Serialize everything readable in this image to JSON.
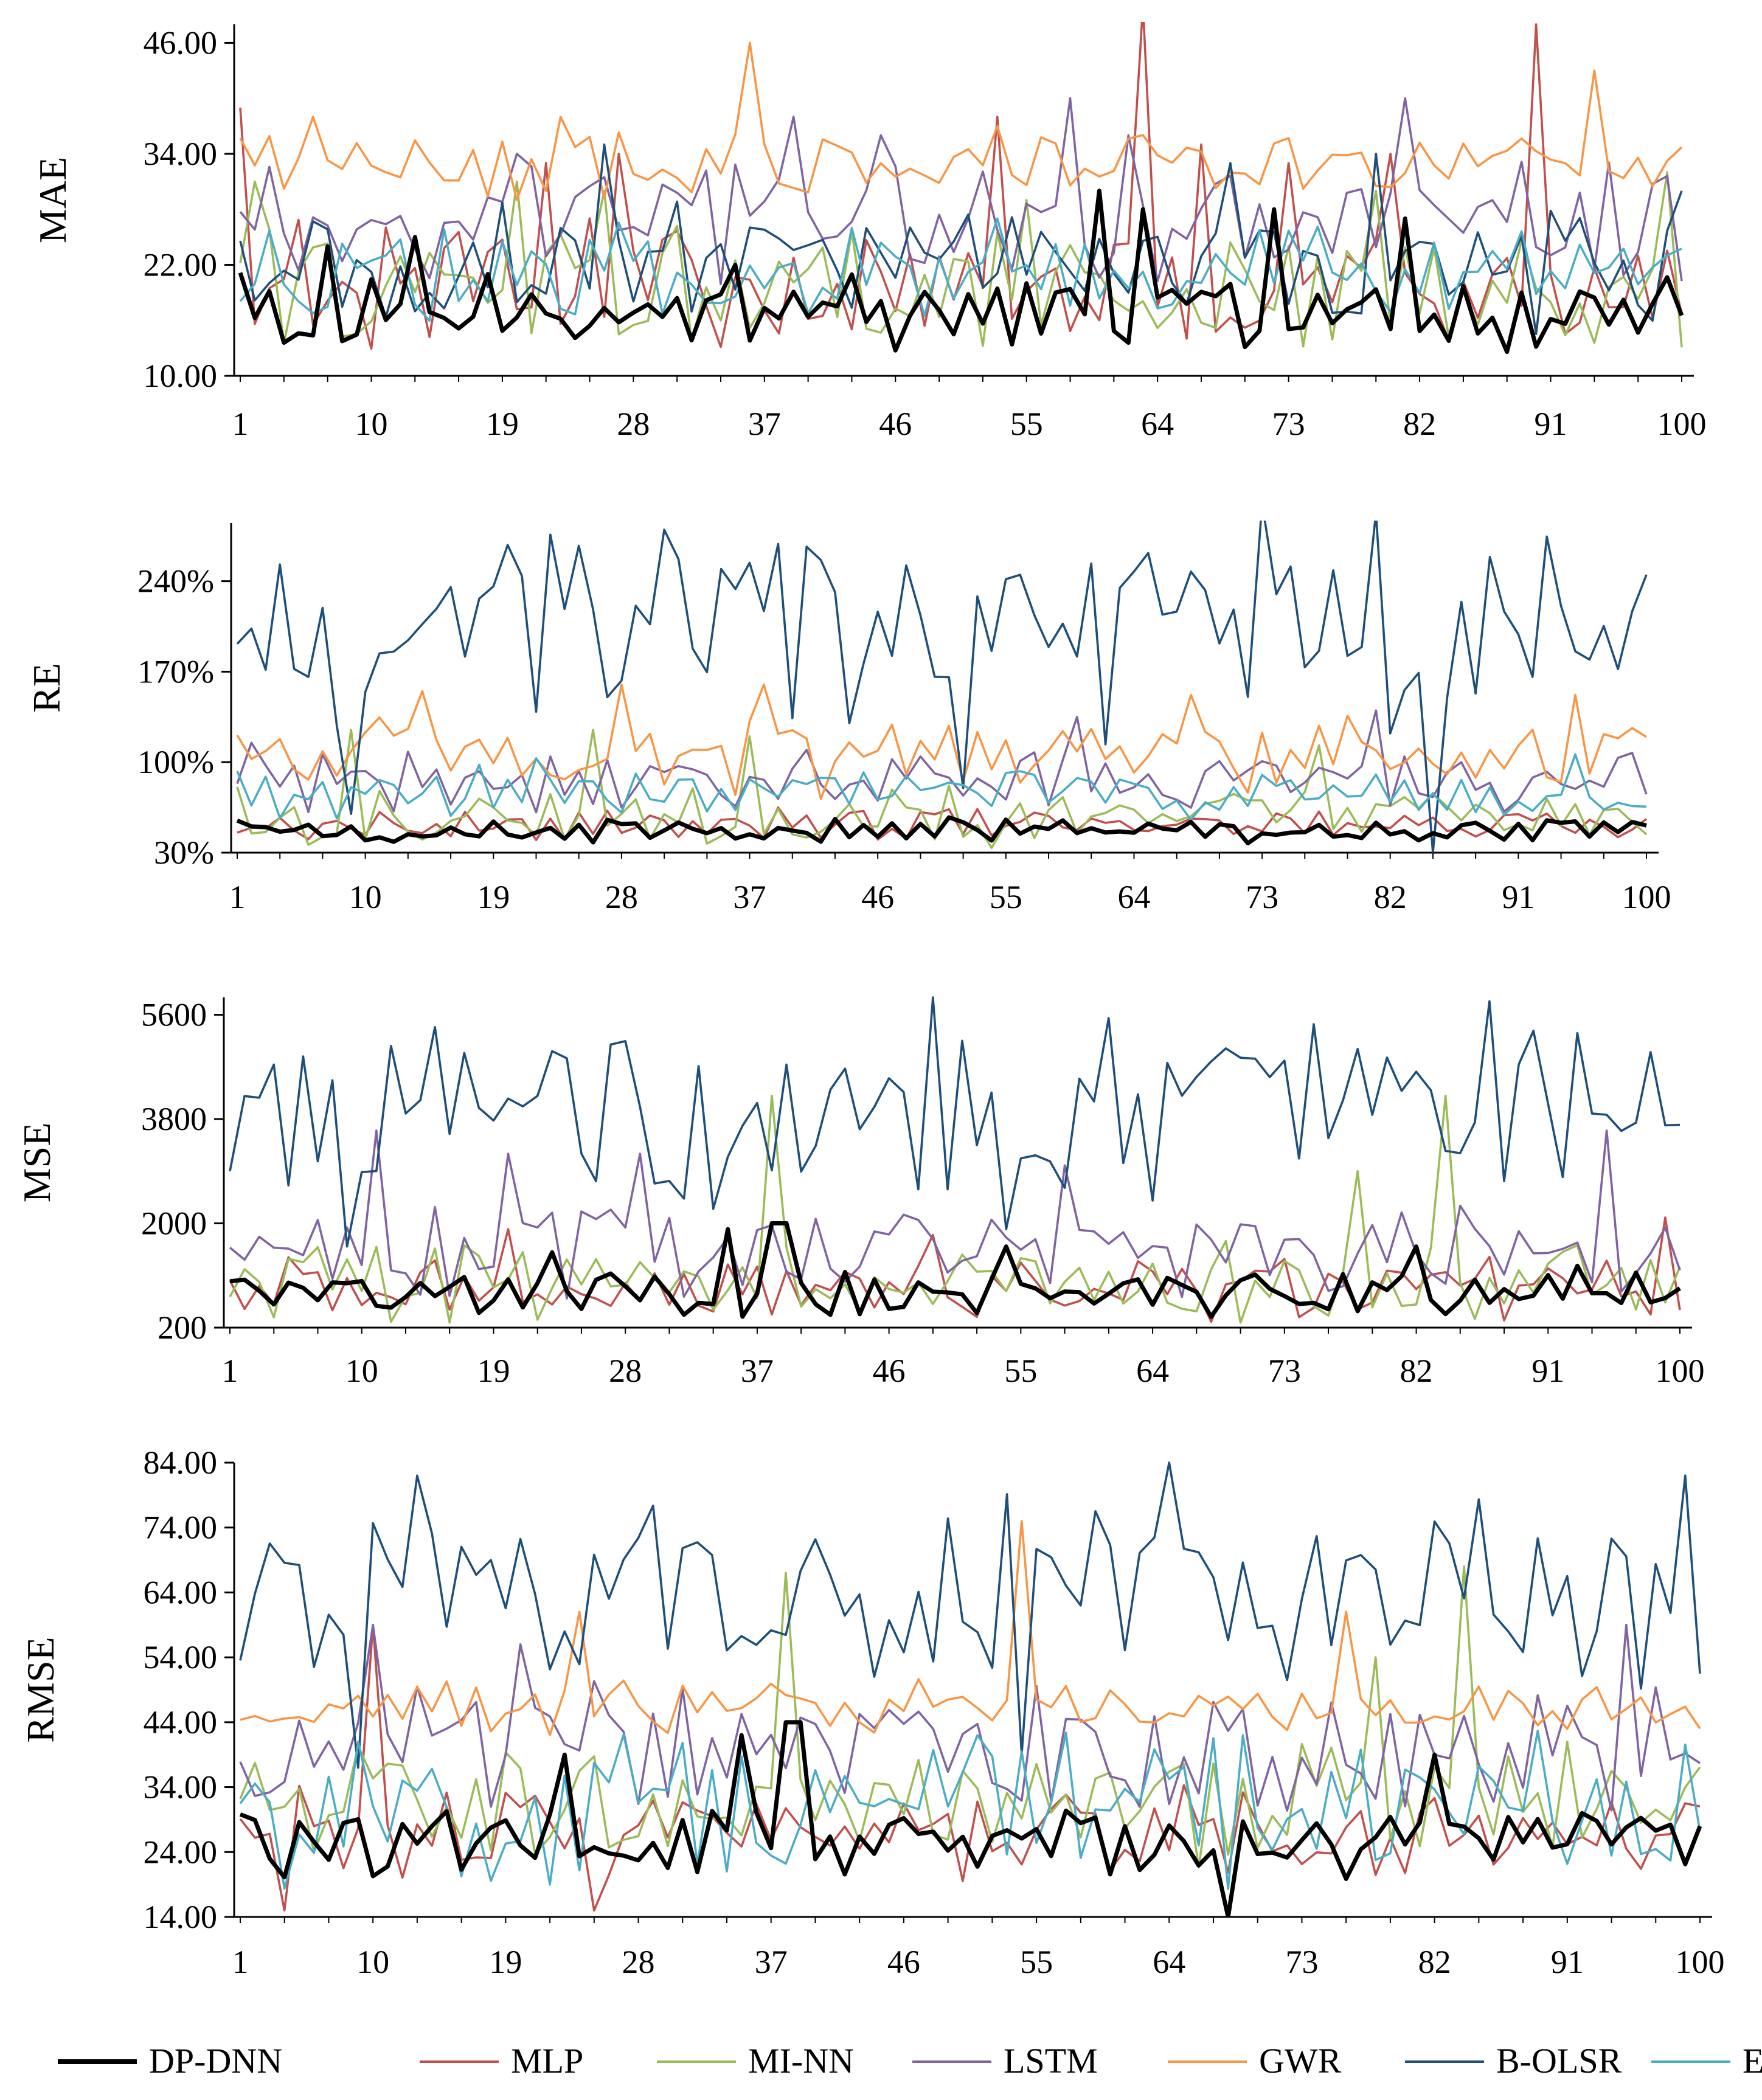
{
  "chart_data": {
    "type": "line",
    "layout": "four stacked line charts sharing one legend at the bottom",
    "series_names": [
      "DP-DNN",
      "MLP",
      "MI-NN",
      "LSTM",
      "GWR",
      "B-OLSR",
      "EN"
    ],
    "series_colors": [
      "#000000",
      "#c0504d",
      "#9bbb59",
      "#8064a2",
      "#f79646",
      "#1f4e79",
      "#4bacc6"
    ],
    "x": {
      "label": "",
      "range": [
        1,
        100
      ],
      "tick_values": [
        1,
        10,
        19,
        28,
        37,
        46,
        55,
        64,
        73,
        82,
        91,
        100
      ],
      "tick_labels": [
        "1",
        "10",
        "19",
        "28",
        "37",
        "46",
        "55",
        "64",
        "73",
        "82",
        "91",
        "100"
      ]
    },
    "legend": {
      "position": "bottom",
      "entries": [
        "DP-DNN",
        "MLP",
        "MI-NN",
        "LSTM",
        "GWR",
        "B-OLSR",
        "EN"
      ]
    },
    "panels": [
      {
        "id": "mae",
        "ylabel": "MAE",
        "ylim": [
          10,
          48
        ],
        "yticks": [
          10,
          22,
          34,
          46
        ],
        "ytick_labels": [
          "10.00",
          "22.00",
          "34.00",
          "46.00"
        ],
        "grid": false,
        "series": [
          {
            "name": "DP-DNN",
            "base": 17,
            "amp": 3.5,
            "seed": 11,
            "spikes": [
              [
                7,
                24
              ],
              [
                13,
                25
              ],
              [
                18,
                21
              ],
              [
                35,
                22
              ],
              [
                60,
                30
              ],
              [
                63,
                28
              ],
              [
                72,
                28
              ],
              [
                81,
                27
              ],
              [
                89,
                19
              ]
            ]
          },
          {
            "name": "MLP",
            "base": 20,
            "amp": 6,
            "seed": 23,
            "spikes": [
              [
                1,
                39
              ],
              [
                22,
                33
              ],
              [
                27,
                34
              ],
              [
                53,
                38
              ],
              [
                63,
                50
              ],
              [
                67,
                35
              ],
              [
                73,
                33
              ],
              [
                80,
                34
              ],
              [
                90,
                48
              ]
            ]
          },
          {
            "name": "MI-NN",
            "base": 19,
            "amp": 6,
            "seed": 37,
            "spikes": [
              [
                2,
                31
              ],
              [
                20,
                31
              ],
              [
                26,
                30
              ],
              [
                55,
                29
              ],
              [
                79,
                30
              ],
              [
                99,
                32
              ]
            ]
          },
          {
            "name": "LSTM",
            "base": 27,
            "amp": 6,
            "seed": 41,
            "spikes": [
              [
                20,
                34
              ],
              [
                39,
                38
              ],
              [
                45,
                36
              ],
              [
                58,
                40
              ],
              [
                62,
                36
              ],
              [
                81,
                40
              ]
            ]
          },
          {
            "name": "GWR",
            "base": 33,
            "amp": 3,
            "seed": 53,
            "spikes": [
              [
                6,
                38
              ],
              [
                23,
                38
              ],
              [
                36,
                46
              ],
              [
                53,
                37
              ],
              [
                94,
                43
              ]
            ]
          },
          {
            "name": "B-OLSR",
            "base": 22,
            "amp": 6,
            "seed": 61,
            "spikes": [
              [
                26,
                35
              ],
              [
                69,
                33
              ],
              [
                79,
                34
              ],
              [
                100,
                30
              ]
            ]
          },
          {
            "name": "EN",
            "base": 21,
            "amp": 5,
            "seed": 71,
            "spikes": []
          }
        ]
      },
      {
        "id": "re",
        "ylabel": "RE",
        "ylim": [
          30,
          285
        ],
        "yticks": [
          30,
          100,
          170,
          240
        ],
        "ytick_labels": [
          "30%",
          "100%",
          "170%",
          "240%"
        ],
        "grid": false,
        "series": [
          {
            "name": "DP-DNN",
            "base": 47,
            "amp": 8,
            "seed": 13,
            "spikes": []
          },
          {
            "name": "MLP",
            "base": 52,
            "amp": 10,
            "seed": 29,
            "spikes": []
          },
          {
            "name": "MI-NN",
            "base": 58,
            "amp": 20,
            "seed": 31,
            "spikes": [
              [
                9,
                125
              ],
              [
                26,
                125
              ],
              [
                37,
                120
              ],
              [
                77,
                113
              ]
            ]
          },
          {
            "name": "LSTM",
            "base": 85,
            "amp": 20,
            "seed": 43,
            "spikes": [
              [
                2,
                115
              ],
              [
                81,
                140
              ],
              [
                60,
                135
              ]
            ]
          },
          {
            "name": "GWR",
            "base": 105,
            "amp": 25,
            "seed": 59,
            "spikes": [
              [
                14,
                155
              ],
              [
                28,
                160
              ],
              [
                38,
                160
              ],
              [
                68,
                152
              ],
              [
                95,
                152
              ]
            ]
          },
          {
            "name": "B-OLSR",
            "base": 205,
            "amp": 75,
            "seed": 67,
            "spikes": [
              [
                9,
                60
              ],
              [
                52,
                80
              ],
              [
                85,
                30
              ],
              [
                100,
                245
              ]
            ]
          },
          {
            "name": "EN",
            "base": 75,
            "amp": 15,
            "seed": 73,
            "spikes": [
              [
                18,
                98
              ],
              [
                22,
                103
              ],
              [
                56,
                93
              ],
              [
                95,
                106
              ]
            ]
          }
        ]
      },
      {
        "id": "mse",
        "ylabel": "MSE",
        "ylim": [
          200,
          5900
        ],
        "yticks": [
          200,
          2000,
          3800,
          5600
        ],
        "ytick_labels": [
          "200",
          "2000",
          "3800",
          "5600"
        ],
        "grid": false,
        "series": [
          {
            "name": "DP-DNN",
            "base": 800,
            "amp": 350,
            "seed": 17,
            "spikes": [
              [
                23,
                1500
              ],
              [
                35,
                1900
              ],
              [
                38,
                2000
              ],
              [
                39,
                2000
              ],
              [
                54,
                1600
              ],
              [
                82,
                1600
              ]
            ]
          },
          {
            "name": "MLP",
            "base": 850,
            "amp": 450,
            "seed": 19,
            "spikes": [
              [
                20,
                1900
              ],
              [
                49,
                1800
              ],
              [
                99,
                2100
              ]
            ]
          },
          {
            "name": "MI-NN",
            "base": 1000,
            "amp": 550,
            "seed": 47,
            "spikes": [
              [
                38,
                4200
              ],
              [
                78,
                2900
              ],
              [
                84,
                4200
              ]
            ]
          },
          {
            "name": "LSTM",
            "base": 1450,
            "amp": 700,
            "seed": 83,
            "spikes": [
              [
                11,
                3600
              ],
              [
                20,
                3200
              ],
              [
                29,
                3200
              ],
              [
                58,
                3000
              ],
              [
                95,
                3600
              ]
            ]
          },
          {
            "name": "B-OLSR",
            "base": 4000,
            "amp": 1500,
            "seed": 89,
            "spikes": [
              [
                1,
                2900
              ],
              [
                9,
                1600
              ],
              [
                54,
                1900
              ],
              [
                100,
                3700
              ]
            ]
          }
        ]
      },
      {
        "id": "rmse",
        "ylabel": "RMSE",
        "ylim": [
          14,
          84
        ],
        "yticks": [
          14,
          24,
          34,
          44,
          54,
          64,
          74,
          84
        ],
        "ytick_labels": [
          "14.00",
          "24.00",
          "34.00",
          "44.00",
          "54.00",
          "64.00",
          "74.00",
          "84.00"
        ],
        "grid": false,
        "series": [
          {
            "name": "DP-DNN",
            "base": 26,
            "amp": 5,
            "seed": 97,
            "spikes": [
              [
                23,
                39
              ],
              [
                35,
                42
              ],
              [
                38,
                44
              ],
              [
                39,
                44
              ],
              [
                68,
                14
              ],
              [
                82,
                39
              ]
            ]
          },
          {
            "name": "MLP",
            "base": 27,
            "amp": 6,
            "seed": 101,
            "spikes": [
              [
                4,
                15
              ],
              [
                10,
                59
              ],
              [
                25,
                15
              ]
            ]
          },
          {
            "name": "MI-NN",
            "base": 31,
            "amp": 8,
            "seed": 103,
            "spikes": [
              [
                38,
                67
              ],
              [
                78,
                54
              ],
              [
                84,
                68
              ]
            ]
          },
          {
            "name": "LSTM",
            "base": 40,
            "amp": 8,
            "seed": 107,
            "spikes": [
              [
                10,
                59
              ],
              [
                20,
                56
              ],
              [
                95,
                59
              ]
            ]
          },
          {
            "name": "GWR",
            "base": 46,
            "amp": 3.5,
            "seed": 109,
            "spikes": [
              [
                24,
                61
              ],
              [
                54,
                75
              ],
              [
                76,
                61
              ]
            ]
          },
          {
            "name": "B-OLSR",
            "base": 64,
            "amp": 12,
            "seed": 113,
            "spikes": [
              [
                9,
                37
              ],
              [
                13,
                82
              ],
              [
                54,
                39
              ],
              [
                64,
                84
              ],
              [
                99,
                82
              ]
            ]
          },
          {
            "name": "EN",
            "base": 31,
            "amp": 10,
            "seed": 127,
            "spikes": []
          }
        ]
      }
    ]
  }
}
